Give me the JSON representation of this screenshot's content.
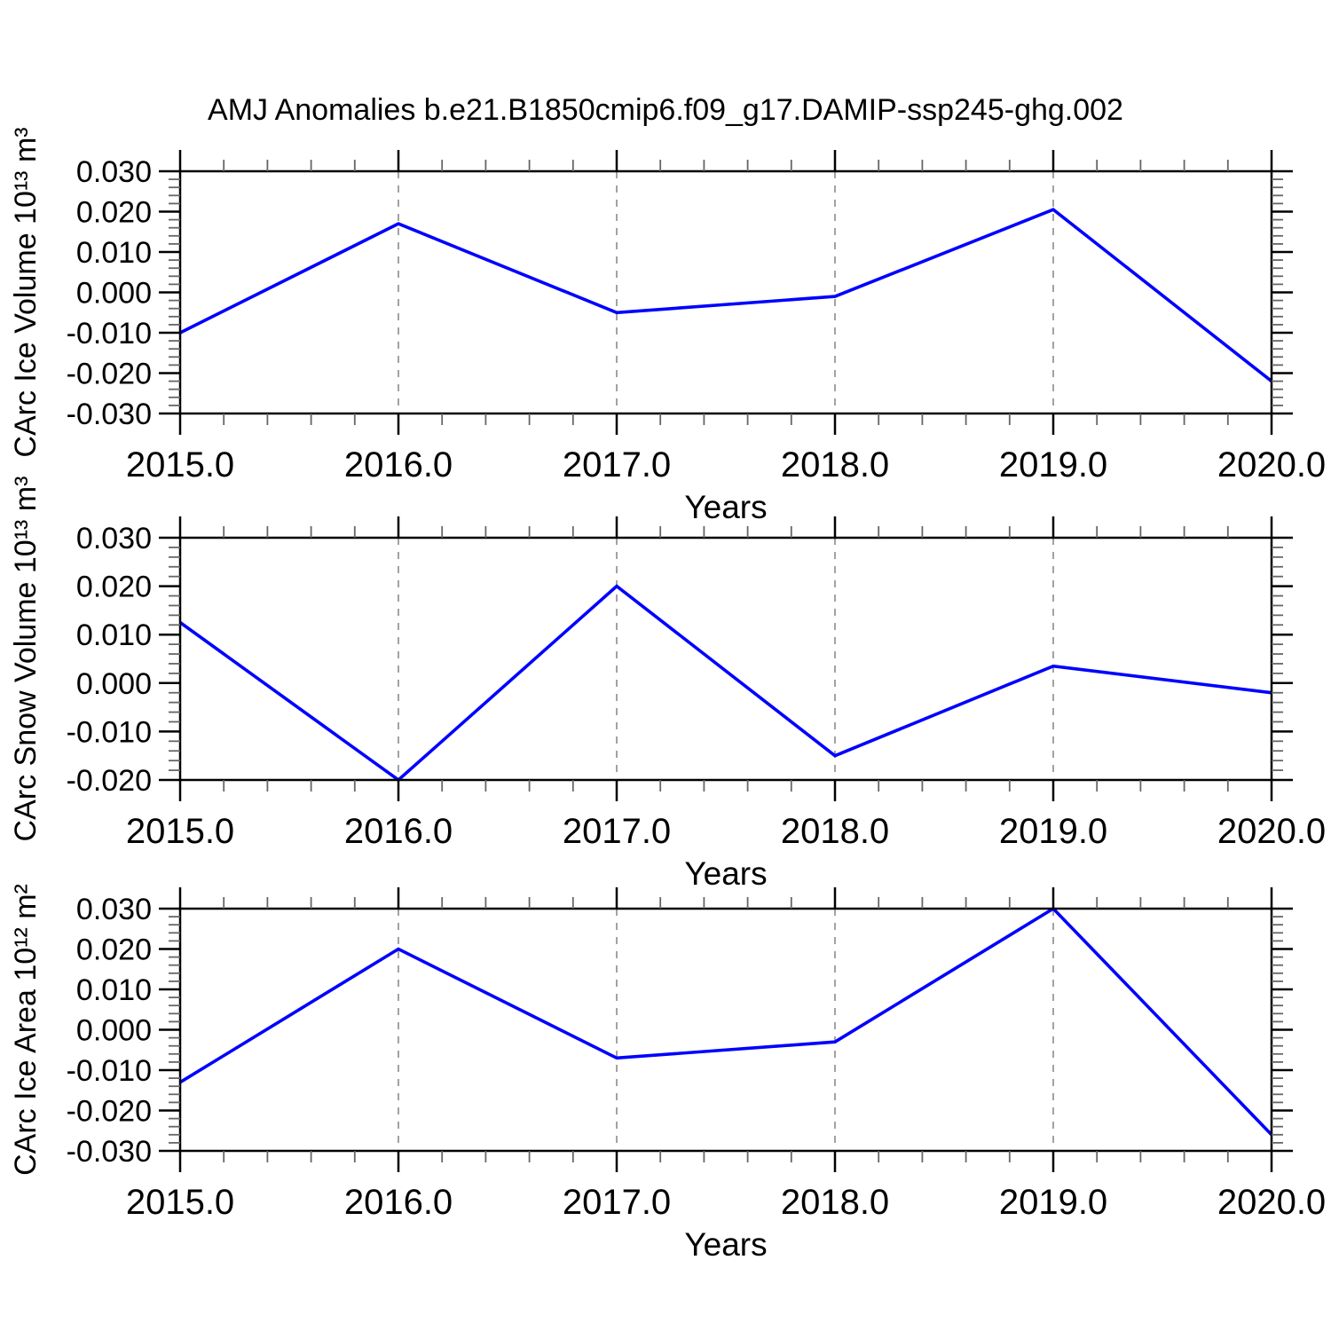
{
  "page": {
    "title": "AMJ Anomalies b.e21.B1850cmip6.f09_g17.DAMIP-ssp245-ghg.002"
  },
  "colors": {
    "line": "#0000ff",
    "grid": "#8c8c8c",
    "axis": "#000000",
    "minor_tick": "#666666"
  },
  "chart_data": [
    {
      "type": "line",
      "panel": "CArc Ice Volume",
      "ylabel": "CArc Ice Volume 10¹³ m³",
      "xlabel": "Years",
      "x": [
        2015.0,
        2016.0,
        2017.0,
        2018.0,
        2019.0,
        2020.0
      ],
      "values": [
        -0.01,
        0.017,
        -0.005,
        -0.001,
        0.0205,
        -0.022
      ],
      "xlim": [
        2015.0,
        2020.0
      ],
      "ylim": [
        -0.03,
        0.03
      ],
      "xtick_labels": [
        "2015.0",
        "2016.0",
        "2017.0",
        "2018.0",
        "2019.0",
        "2020.0"
      ],
      "ytick_labels": [
        "-0.030",
        "-0.020",
        "-0.010",
        "0.000",
        "0.010",
        "0.020",
        "0.030"
      ],
      "ytick_step": 0.01,
      "y_minor_step": 0.002,
      "x_minor_step": 0.2,
      "grid_x": [
        2016.0,
        2017.0,
        2018.0,
        2019.0
      ],
      "grid_style": "dashed",
      "legend": "none"
    },
    {
      "type": "line",
      "panel": "CArc Snow Volume",
      "ylabel": "CArc Snow Volume 10¹³ m³",
      "xlabel": "Years",
      "x": [
        2015.0,
        2016.0,
        2017.0,
        2018.0,
        2019.0,
        2020.0
      ],
      "values": [
        0.0125,
        -0.02,
        0.02,
        -0.015,
        0.0035,
        -0.002
      ],
      "xlim": [
        2015.0,
        2020.0
      ],
      "ylim": [
        -0.02,
        0.03
      ],
      "xtick_labels": [
        "2015.0",
        "2016.0",
        "2017.0",
        "2018.0",
        "2019.0",
        "2020.0"
      ],
      "ytick_labels": [
        "-0.020",
        "-0.010",
        "0.000",
        "0.010",
        "0.020",
        "0.030"
      ],
      "ytick_step": 0.01,
      "y_minor_step": 0.002,
      "x_minor_step": 0.2,
      "grid_x": [
        2016.0,
        2017.0,
        2018.0,
        2019.0
      ],
      "grid_style": "dashed",
      "legend": "none"
    },
    {
      "type": "line",
      "panel": "CArc Ice Area",
      "ylabel": "CArc Ice Area 10¹² m²",
      "xlabel": "Years",
      "x": [
        2015.0,
        2016.0,
        2017.0,
        2018.0,
        2019.0,
        2020.0
      ],
      "values": [
        -0.013,
        0.02,
        -0.007,
        -0.003,
        0.03,
        -0.026
      ],
      "xlim": [
        2015.0,
        2020.0
      ],
      "ylim": [
        -0.03,
        0.03
      ],
      "xtick_labels": [
        "2015.0",
        "2016.0",
        "2017.0",
        "2018.0",
        "2019.0",
        "2020.0"
      ],
      "ytick_labels": [
        "-0.030",
        "-0.020",
        "-0.010",
        "0.000",
        "0.010",
        "0.020",
        "0.030"
      ],
      "ytick_step": 0.01,
      "y_minor_step": 0.002,
      "x_minor_step": 0.2,
      "grid_x": [
        2016.0,
        2017.0,
        2018.0,
        2019.0
      ],
      "grid_style": "dashed",
      "legend": "none"
    }
  ]
}
